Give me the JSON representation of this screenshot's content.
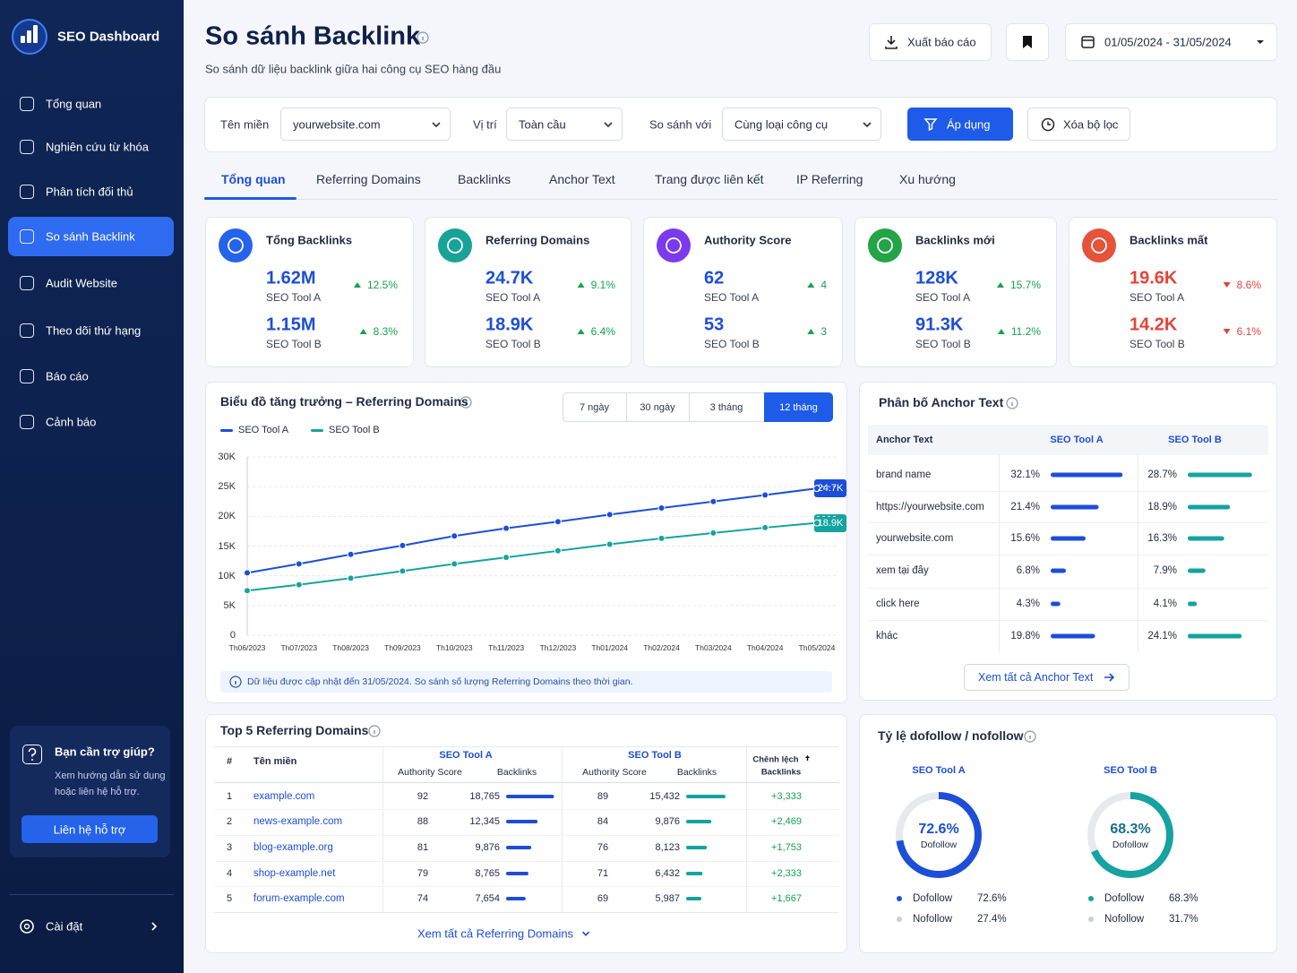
{
  "sidebar": {
    "brand": "SEO Dashboard",
    "nav": [
      "Tổng quan",
      "Nghiên cứu từ khóa",
      "Phân tích đối thủ",
      "So sánh Backlink",
      "Audit Website",
      "Theo dõi thứ hạng",
      "Báo cáo",
      "Cảnh báo"
    ],
    "help": {
      "title": "Bạn cần trợ giúp?",
      "text": "Xem hướng dẫn sử dụng hoặc liên hệ hỗ trợ.",
      "button": "Liên hệ hỗ trợ"
    },
    "settings": "Cài đặt"
  },
  "header": {
    "title": "So sánh Backlink",
    "subtitle": "So sánh dữ liệu backlink giữa hai công cụ SEO hàng đầu",
    "export": "Xuất báo cáo",
    "date_range": "01/05/2024 - 31/05/2024"
  },
  "filters": {
    "domain_label": "Tên miền",
    "domain": "yourwebsite.com",
    "position_label": "Vị trí",
    "position": "Toàn cầu",
    "compare_label": "So sánh với",
    "compare": "Cùng loại công cụ",
    "apply": "Áp dụng",
    "clear": "Xóa bộ lọc"
  },
  "tabs": [
    "Tổng quan",
    "Referring Domains",
    "Backlinks",
    "Anchor Text",
    "Trang được liên kết",
    "IP Referring",
    "Xu hướng"
  ],
  "cards": [
    {
      "title": "Tổng Backlinks",
      "color": "#2563eb",
      "trend": "up",
      "a": {
        "value": "1.62M",
        "label": "SEO Tool A",
        "change": "12.5%"
      },
      "b": {
        "value": "1.15M",
        "label": "SEO Tool B",
        "change": "8.3%"
      }
    },
    {
      "title": "Referring Domains",
      "color": "#17a398",
      "trend": "up",
      "a": {
        "value": "24.7K",
        "label": "SEO Tool A",
        "change": "9.1%"
      },
      "b": {
        "value": "18.9K",
        "label": "SEO Tool B",
        "change": "6.4%"
      }
    },
    {
      "title": "Authority Score",
      "color": "#7c3aed",
      "trend": "up",
      "a": {
        "value": "62",
        "label": "SEO Tool A",
        "change": "4"
      },
      "b": {
        "value": "53",
        "label": "SEO Tool B",
        "change": "3"
      }
    },
    {
      "title": "Backlinks mới",
      "color": "#22a447",
      "trend": "up",
      "a": {
        "value": "128K",
        "label": "SEO Tool A",
        "change": "15.7%"
      },
      "b": {
        "value": "91.3K",
        "label": "SEO Tool B",
        "change": "11.2%"
      }
    },
    {
      "title": "Backlinks mất",
      "color": "#e5533a",
      "trend": "down",
      "a": {
        "value": "19.6K",
        "label": "SEO Tool A",
        "change": "8.6%"
      },
      "b": {
        "value": "14.2K",
        "label": "SEO Tool B",
        "change": "6.1%"
      }
    }
  ],
  "growth_chart": {
    "type": "line",
    "title": "Biểu đồ tăng trưởng – Referring Domains",
    "periods": [
      "7 ngày",
      "30 ngày",
      "3 tháng",
      "12 tháng"
    ],
    "x": [
      "Th06/2023",
      "Th07/2023",
      "Th08/2023",
      "Th09/2023",
      "Th10/2023",
      "Th11/2023",
      "Th12/2023",
      "Th01/2024",
      "Th02/2024",
      "Th03/2024",
      "Th04/2024",
      "Th05/2024"
    ],
    "series": [
      {
        "name": "SEO Tool A",
        "color": "#1d4ed8",
        "values": [
          10500,
          12000,
          13600,
          15100,
          16700,
          18000,
          19100,
          20300,
          21400,
          22500,
          23600,
          24700
        ],
        "end_label": "24.7K"
      },
      {
        "name": "SEO Tool B",
        "color": "#14a3a0",
        "values": [
          7500,
          8500,
          9600,
          10800,
          12000,
          13100,
          14200,
          15300,
          16300,
          17200,
          18100,
          18900
        ],
        "end_label": "18.9K"
      }
    ],
    "ylim": [
      0,
      30000
    ],
    "yticks": [
      0,
      {
        "value": 5000,
        "label": "5K"
      },
      {
        "value": 10000,
        "label": "10K"
      },
      {
        "value": 15000,
        "label": "15K"
      },
      {
        "value": 20000,
        "label": "20K"
      },
      {
        "value": 25000,
        "label": "25K"
      },
      {
        "value": 30000,
        "label": "30K"
      }
    ],
    "grid": true,
    "note": "Dữ liệu được cập nhật đến 31/05/2024. So sánh số lượng Referring Domains theo thời gian."
  },
  "anchor_table": {
    "title": "Phân bố Anchor Text",
    "columns": [
      "Anchor Text",
      "SEO Tool A",
      "SEO Tool B"
    ],
    "bar_xlim": [
      0,
      40
    ],
    "rows": [
      {
        "anchor": "brand name",
        "a": 32.1,
        "a_label": "32.1%",
        "b": 28.7,
        "b_label": "28.7%"
      },
      {
        "anchor": "https://yourwebsite.com",
        "a": 21.4,
        "a_label": "21.4%",
        "b": 18.9,
        "b_label": "18.9%"
      },
      {
        "anchor": "yourwebsite.com",
        "a": 15.6,
        "a_label": "15.6%",
        "b": 16.3,
        "b_label": "16.3%"
      },
      {
        "anchor": "xem tại đây",
        "a": 6.8,
        "a_label": "6.8%",
        "b": 7.9,
        "b_label": "7.9%"
      },
      {
        "anchor": "click here",
        "a": 4.3,
        "a_label": "4.3%",
        "b": 4.1,
        "b_label": "4.1%"
      },
      {
        "anchor": "khác",
        "a": 19.8,
        "a_label": "19.8%",
        "b": 24.1,
        "b_label": "24.1%"
      }
    ],
    "link": "Xem tất cả Anchor Text"
  },
  "top_domains": {
    "title": "Top 5 Referring Domains",
    "headers": {
      "index": "#",
      "domain": "Tên miền",
      "tool_a": "SEO Tool A",
      "tool_b": "SEO Tool B",
      "subheaders": [
        "Authority Score",
        "Backlinks",
        "Authority Score",
        "Backlinks"
      ],
      "diff": "Chênh lệch",
      "diff_sub": "Backlinks"
    },
    "bar_xlim": [
      0,
      20000
    ],
    "rows": [
      {
        "rank": 1,
        "domain": "example.com",
        "a_score": 92,
        "a_backlinks": 18765,
        "a_backlinks_label": "18,765",
        "b_score": 89,
        "b_backlinks": 15432,
        "b_backlinks_label": "15,432",
        "diff": 3333,
        "diff_label": "+3,333"
      },
      {
        "rank": 2,
        "domain": "news-example.com",
        "a_score": 88,
        "a_backlinks": 12345,
        "a_backlinks_label": "12,345",
        "b_score": 84,
        "b_backlinks": 9876,
        "b_backlinks_label": "9,876",
        "diff": 2469,
        "diff_label": "+2,469"
      },
      {
        "rank": 3,
        "domain": "blog-example.org",
        "a_score": 81,
        "a_backlinks": 9876,
        "a_backlinks_label": "9,876",
        "b_score": 76,
        "b_backlinks": 8123,
        "b_backlinks_label": "8,123",
        "diff": 1753,
        "diff_label": "+1,753"
      },
      {
        "rank": 4,
        "domain": "shop-example.net",
        "a_score": 79,
        "a_backlinks": 8765,
        "a_backlinks_label": "8,765",
        "b_score": 71,
        "b_backlinks": 6432,
        "b_backlinks_label": "6,432",
        "diff": 2333,
        "diff_label": "+2,333"
      },
      {
        "rank": 5,
        "domain": "forum-example.com",
        "a_score": 74,
        "a_backlinks": 7654,
        "a_backlinks_label": "7,654",
        "b_score": 69,
        "b_backlinks": 5987,
        "b_backlinks_label": "5,987",
        "diff": 1667,
        "diff_label": "+1,667"
      }
    ],
    "link": "Xem tất cả Referring Domains"
  },
  "dofollow": {
    "title": "Tỷ lệ dofollow / nofollow",
    "tools": [
      {
        "name": "SEO Tool A",
        "color": "#1d4ed8",
        "values": [
          {
            "name": "Dofollow",
            "value": 72.6,
            "label": "72.6%"
          },
          {
            "name": "Nofollow",
            "value": 27.4,
            "label": "27.4%"
          }
        ]
      },
      {
        "name": "SEO Tool B",
        "color": "#14a3a0",
        "values": [
          {
            "name": "Dofollow",
            "value": 68.3,
            "label": "68.3%"
          },
          {
            "name": "Nofollow",
            "value": 31.7,
            "label": "31.7%"
          }
        ]
      }
    ]
  }
}
